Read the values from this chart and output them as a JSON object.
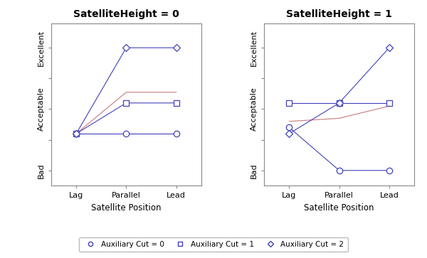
{
  "subplot_titles": [
    "SatelliteHeight = 0",
    "SatelliteHeight = 1"
  ],
  "xlabel": "Satellite Position",
  "xtick_labels": [
    "Lag",
    "Parallel",
    "Lead"
  ],
  "xtick_positions": [
    0,
    1,
    2
  ],
  "ytick_labels": [
    "Bad",
    "",
    "Acceptable",
    "",
    "Excellent"
  ],
  "ytick_positions": [
    1,
    2,
    3,
    4,
    5
  ],
  "ylim": [
    0.5,
    5.8
  ],
  "xlim": [
    -0.5,
    2.5
  ],
  "line_color": "#4040bb",
  "mean_color": "#cc8888",
  "plot0": {
    "circle": [
      2.2,
      2.2,
      2.2
    ],
    "square": [
      2.2,
      3.2,
      3.2
    ],
    "diamond": [
      2.2,
      5.0,
      5.0
    ],
    "mean": [
      2.2,
      3.55,
      3.55
    ]
  },
  "plot1": {
    "circle": [
      2.4,
      1.0,
      1.0
    ],
    "square": [
      3.2,
      3.2,
      3.2
    ],
    "diamond": [
      2.2,
      3.2,
      5.0
    ],
    "mean": [
      2.6,
      2.7,
      3.1
    ]
  },
  "legend_labels": [
    "Auxiliary Cut = 0",
    "Auxiliary Cut = 1",
    "Auxiliary Cut = 2"
  ],
  "title_fontsize": 10,
  "axis_fontsize": 8.5,
  "tick_fontsize": 8,
  "legend_fontsize": 7.5,
  "fig_facecolor": "#f0f0f0"
}
